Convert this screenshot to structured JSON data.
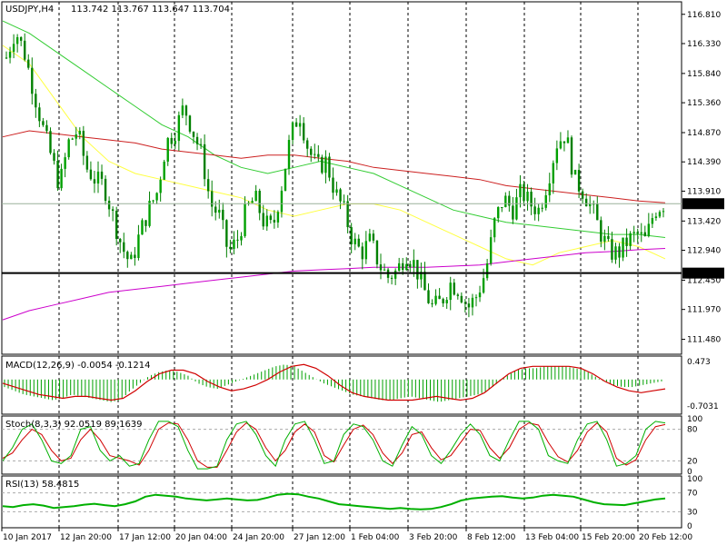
{
  "header": {
    "symbol": "USDJPY,H4",
    "ohlc": "113.742 113.767 113.647 113.704"
  },
  "colors": {
    "bull": "#00a000",
    "bear": "#008000",
    "sma_fast": "#ffff40",
    "sma_mid": "#33cc33",
    "sma_slow": "#cc2020",
    "sma_long": "#cc00cc",
    "macd_signal": "#d00000",
    "stoch_k": "#00b000",
    "stoch_d": "#d00000",
    "rsi": "#00b000",
    "support": "#000000",
    "price_tag": "#000000"
  },
  "chart_data": [
    {
      "type": "candlestick",
      "panel": "price",
      "symbol": "USDJPY",
      "timeframe": "H4",
      "ylim": [
        111.25,
        117.0
      ],
      "y_ticks": [
        "116.810",
        "116.330",
        "115.840",
        "115.360",
        "114.870",
        "114.390",
        "113.910",
        "113.420",
        "112.940",
        "112.450",
        "111.970",
        "111.480"
      ],
      "x_ticks": [
        "10 Jan 2017",
        "12 Jan 20:00",
        "17 Jan 12:00",
        "20 Jan 04:00",
        "24 Jan 20:00",
        "27 Jan 12:00",
        "1 Feb 04:00",
        "3 Feb 20:00",
        "8 Feb 12:00",
        "13 Feb 04:00",
        "15 Feb 20:00",
        "20 Feb 12:00"
      ],
      "close_path": [
        116.1,
        116.55,
        116.2,
        115.6,
        115.0,
        114.5,
        114.0,
        114.7,
        114.9,
        114.3,
        114.1,
        114.0,
        113.5,
        113.0,
        112.7,
        113.2,
        113.6,
        113.9,
        114.7,
        114.9,
        115.3,
        114.9,
        114.5,
        113.7,
        113.5,
        112.9,
        113.1,
        113.6,
        113.8,
        113.4,
        113.3,
        114.0,
        114.8,
        115.2,
        114.6,
        114.3,
        114.4,
        113.9,
        113.6,
        113.1,
        112.9,
        113.1,
        112.7,
        112.5,
        112.6,
        112.9,
        112.7,
        112.3,
        112.0,
        112.1,
        112.4,
        112.3,
        112.0,
        112.2,
        112.6,
        113.4,
        113.8,
        113.6,
        113.9,
        113.7,
        113.6,
        114.1,
        114.7,
        114.85,
        114.1,
        113.9,
        113.6,
        113.2,
        112.9,
        112.9,
        113.1,
        113.2,
        113.1,
        113.6,
        113.7
      ],
      "current_price": "113.704",
      "support_level": "112.566",
      "series": [
        {
          "values": [
            116.3,
            116.0,
            115.4,
            114.8,
            114.4,
            114.2,
            114.1,
            114.0,
            113.9,
            113.8,
            113.6,
            113.5,
            113.6,
            113.7,
            113.7,
            113.6,
            113.4,
            113.2,
            113.0,
            112.8,
            112.7,
            112.9,
            113.0,
            113.1,
            113.0,
            112.8
          ]
        },
        {
          "values": [
            116.7,
            116.5,
            116.2,
            115.9,
            115.6,
            115.3,
            115.0,
            114.8,
            114.5,
            114.3,
            114.2,
            114.3,
            114.4,
            114.3,
            114.2,
            114.0,
            113.8,
            113.6,
            113.5,
            113.4,
            113.35,
            113.3,
            113.25,
            113.2,
            113.2,
            113.15
          ]
        },
        {
          "values": [
            114.8,
            114.9,
            114.85,
            114.8,
            114.75,
            114.7,
            114.6,
            114.55,
            114.5,
            114.45,
            114.5,
            114.5,
            114.45,
            114.4,
            114.3,
            114.25,
            114.2,
            114.15,
            114.1,
            114.0,
            113.95,
            113.9,
            113.85,
            113.8,
            113.75,
            113.72
          ]
        },
        {
          "values": [
            111.8,
            111.95,
            112.05,
            112.15,
            112.25,
            112.3,
            112.35,
            112.4,
            112.45,
            112.5,
            112.55,
            112.6,
            112.62,
            112.64,
            112.66,
            112.66,
            112.66,
            112.68,
            112.7,
            112.75,
            112.8,
            112.85,
            112.9,
            112.92,
            112.95,
            112.97
          ]
        }
      ]
    },
    {
      "type": "histogram",
      "panel": "macd",
      "label": "MACD(12,26,9) -0.0054 -0.1214",
      "y_ticks": [
        "0.473",
        "-0.7031"
      ],
      "ylim": [
        -0.9,
        0.6
      ],
      "histogram": [
        -0.2,
        -0.3,
        -0.4,
        -0.45,
        -0.5,
        -0.55,
        -0.5,
        -0.4,
        -0.45,
        -0.5,
        -0.55,
        -0.6,
        -0.55,
        -0.3,
        -0.1,
        0.1,
        0.2,
        0.25,
        0.2,
        0.1,
        -0.1,
        -0.2,
        -0.25,
        -0.15,
        -0.05,
        0.05,
        0.15,
        0.25,
        0.35,
        0.4,
        0.35,
        0.2,
        0.05,
        -0.1,
        -0.2,
        -0.3,
        -0.4,
        -0.45,
        -0.5,
        -0.55,
        -0.55,
        -0.5,
        -0.45,
        -0.5,
        -0.55,
        -0.6,
        -0.55,
        -0.5,
        -0.45,
        -0.4,
        -0.3,
        -0.1,
        0.1,
        0.25,
        0.3,
        0.3,
        0.35,
        0.35,
        0.35,
        0.3,
        0.25,
        0.1,
        -0.05,
        -0.15,
        -0.2,
        -0.2,
        -0.15,
        -0.1,
        -0.05
      ],
      "signal": [
        -0.1,
        -0.2,
        -0.3,
        -0.4,
        -0.45,
        -0.5,
        -0.45,
        -0.45,
        -0.5,
        -0.55,
        -0.5,
        -0.3,
        -0.05,
        0.15,
        0.25,
        0.25,
        0.15,
        -0.05,
        -0.2,
        -0.3,
        -0.25,
        -0.15,
        0.0,
        0.2,
        0.35,
        0.4,
        0.3,
        0.1,
        -0.15,
        -0.35,
        -0.45,
        -0.5,
        -0.55,
        -0.55,
        -0.55,
        -0.5,
        -0.45,
        -0.5,
        -0.55,
        -0.5,
        -0.35,
        -0.1,
        0.15,
        0.3,
        0.35,
        0.35,
        0.35,
        0.35,
        0.3,
        0.15,
        -0.05,
        -0.2,
        -0.3,
        -0.35,
        -0.3,
        -0.25
      ]
    },
    {
      "type": "line",
      "panel": "stochastic",
      "label": "Stoch(8,3,3) 92.0519 89.1639",
      "y_ticks": [
        "100",
        "80",
        "20",
        "0"
      ],
      "ylim": [
        0,
        100
      ],
      "series": [
        {
          "values": [
            20,
            45,
            80,
            90,
            60,
            20,
            15,
            30,
            80,
            85,
            40,
            20,
            30,
            10,
            15,
            60,
            95,
            95,
            85,
            40,
            5,
            5,
            10,
            60,
            90,
            95,
            70,
            30,
            10,
            60,
            90,
            95,
            60,
            15,
            20,
            70,
            90,
            85,
            60,
            20,
            10,
            50,
            85,
            70,
            30,
            15,
            40,
            70,
            90,
            70,
            30,
            20,
            60,
            95,
            95,
            80,
            30,
            20,
            15,
            60,
            90,
            95,
            60,
            10,
            15,
            30,
            80,
            95,
            92
          ]
        },
        {
          "values": [
            25,
            35,
            60,
            80,
            70,
            40,
            20,
            25,
            60,
            80,
            60,
            30,
            25,
            20,
            12,
            40,
            80,
            92,
            90,
            60,
            20,
            8,
            8,
            40,
            75,
            92,
            80,
            45,
            20,
            40,
            75,
            90,
            75,
            30,
            18,
            50,
            80,
            88,
            70,
            35,
            15,
            35,
            70,
            75,
            45,
            22,
            30,
            55,
            80,
            78,
            45,
            25,
            45,
            80,
            92,
            88,
            55,
            28,
            18,
            40,
            75,
            92,
            75,
            25,
            12,
            22,
            60,
            85,
            89
          ]
        }
      ]
    },
    {
      "type": "line",
      "panel": "rsi",
      "label": "RSI(13) 58.4815",
      "y_ticks": [
        "100",
        "70",
        "30",
        "0"
      ],
      "ylim": [
        0,
        100
      ],
      "series": [
        {
          "values": [
            42,
            40,
            44,
            46,
            43,
            38,
            40,
            42,
            45,
            47,
            44,
            42,
            46,
            52,
            62,
            66,
            64,
            62,
            58,
            56,
            54,
            56,
            58,
            56,
            54,
            55,
            60,
            66,
            68,
            67,
            62,
            58,
            52,
            46,
            44,
            42,
            40,
            38,
            36,
            38,
            36,
            35,
            36,
            40,
            46,
            54,
            58,
            60,
            62,
            63,
            60,
            58,
            60,
            64,
            66,
            64,
            62,
            56,
            50,
            46,
            45,
            44,
            48,
            52,
            56,
            58
          ]
        }
      ]
    }
  ]
}
